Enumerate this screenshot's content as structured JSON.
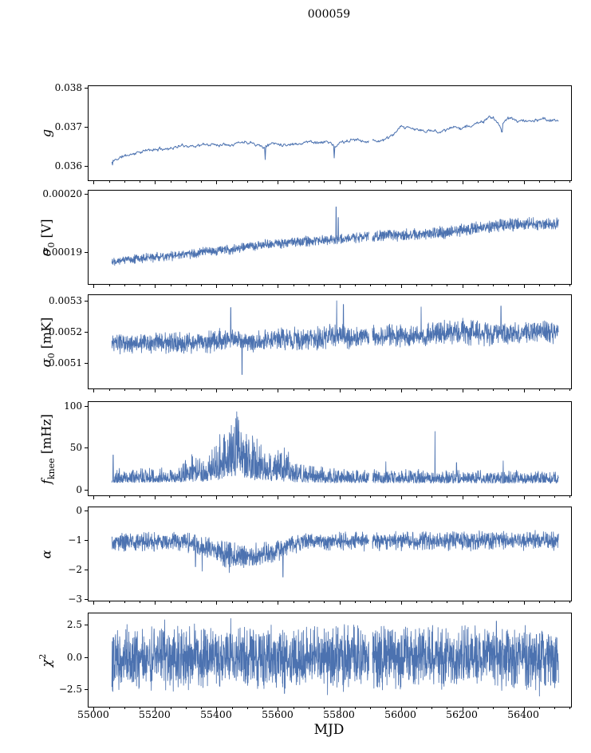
{
  "figure": {
    "title": "000059",
    "xlabel": "MJD",
    "background": "#ffffff",
    "line_color": "#4c72b0",
    "axis_color": "#000000",
    "xlim": [
      54982,
      56553
    ],
    "x_minor_step": 50,
    "xticks": [
      {
        "v": 55000,
        "label": "55000"
      },
      {
        "v": 55200,
        "label": "55200"
      },
      {
        "v": 55400,
        "label": "55400"
      },
      {
        "v": 55600,
        "label": "55600"
      },
      {
        "v": 55800,
        "label": "55800"
      },
      {
        "v": 56000,
        "label": "56000"
      },
      {
        "v": 56200,
        "label": "56200"
      },
      {
        "v": 56400,
        "label": "56400"
      }
    ]
  },
  "chart_data": [
    {
      "type": "line",
      "ylabel": {
        "main": "g",
        "sub": "",
        "sup": "",
        "unit": ""
      },
      "ylim": [
        0.03565,
        0.03805
      ],
      "yticks": [
        {
          "v": 0.038,
          "label": "0.038"
        },
        {
          "v": 0.037,
          "label": "0.037"
        },
        {
          "v": 0.036,
          "label": "0.036"
        }
      ],
      "x_range": [
        55058,
        56512
      ],
      "n_points": 700,
      "seed": 11,
      "smooth": 0.88,
      "skew": false,
      "line_width": 1.0,
      "trend": [
        [
          55058,
          0.03612
        ],
        [
          55090,
          0.03625
        ],
        [
          55150,
          0.03638
        ],
        [
          55220,
          0.03645
        ],
        [
          55280,
          0.03652
        ],
        [
          55340,
          0.03655
        ],
        [
          55400,
          0.03656
        ],
        [
          55460,
          0.03662
        ],
        [
          55520,
          0.03664
        ],
        [
          55555,
          0.0365
        ],
        [
          55580,
          0.0366
        ],
        [
          55640,
          0.03658
        ],
        [
          55700,
          0.03664
        ],
        [
          55770,
          0.03662
        ],
        [
          55785,
          0.03645
        ],
        [
          55800,
          0.0366
        ],
        [
          55840,
          0.03667
        ],
        [
          55880,
          0.03668
        ],
        [
          55920,
          0.03666
        ],
        [
          55960,
          0.03672
        ],
        [
          56000,
          0.03698
        ],
        [
          56040,
          0.03694
        ],
        [
          56080,
          0.0369
        ],
        [
          56130,
          0.03692
        ],
        [
          56180,
          0.03698
        ],
        [
          56230,
          0.03705
        ],
        [
          56270,
          0.03718
        ],
        [
          56300,
          0.03724
        ],
        [
          56325,
          0.037
        ],
        [
          56345,
          0.03722
        ],
        [
          56380,
          0.03718
        ],
        [
          56420,
          0.03716
        ],
        [
          56460,
          0.03722
        ],
        [
          56512,
          0.03714
        ]
      ],
      "amp": [
        [
          55058,
          0.0001
        ],
        [
          56512,
          0.0001
        ]
      ],
      "spikes": [
        [
          55060,
          0.03604
        ],
        [
          55557,
          0.03618
        ],
        [
          55782,
          0.03622
        ],
        [
          55900,
          0.03658
        ],
        [
          56328,
          0.03688
        ]
      ],
      "gaps": [
        [
          55895,
          55906
        ]
      ]
    },
    {
      "type": "line",
      "ylabel": {
        "main": "σ",
        "sub": "0",
        "sup": "",
        "unit": " [V]"
      },
      "ylim": [
        0.0001846,
        0.0002006
      ],
      "yticks": [
        {
          "v": 0.0002,
          "label": "0.00020"
        },
        {
          "v": 0.00019,
          "label": "0.00019"
        }
      ],
      "x_range": [
        55058,
        56512
      ],
      "n_points": 1900,
      "seed": 22,
      "smooth": 0,
      "skew": false,
      "line_width": 0.85,
      "trend": [
        [
          55058,
          0.0001886
        ],
        [
          55150,
          0.000189
        ],
        [
          55250,
          0.0001894
        ],
        [
          55350,
          0.00019
        ],
        [
          55420,
          0.0001904
        ],
        [
          55500,
          0.000191
        ],
        [
          55580,
          0.0001915
        ],
        [
          55660,
          0.0001918
        ],
        [
          55740,
          0.000192
        ],
        [
          55820,
          0.0001924
        ],
        [
          55900,
          0.0001928
        ],
        [
          55980,
          0.000193
        ],
        [
          56060,
          0.0001931
        ],
        [
          56140,
          0.0001934
        ],
        [
          56220,
          0.000194
        ],
        [
          56300,
          0.0001946
        ],
        [
          56380,
          0.0001949
        ],
        [
          56450,
          0.0001948
        ],
        [
          56512,
          0.000195
        ]
      ],
      "amp": [
        [
          55058,
          9e-07
        ],
        [
          55800,
          1e-06
        ],
        [
          56200,
          1.3e-06
        ],
        [
          56512,
          1.2e-06
        ]
      ],
      "spikes": [
        [
          55788,
          0.0001978
        ],
        [
          55795,
          0.000196
        ]
      ],
      "gaps": [
        [
          55895,
          55906
        ]
      ]
    },
    {
      "type": "line",
      "ylabel": {
        "main": "σ",
        "sub": "0",
        "sup": "",
        "unit": " [mK]"
      },
      "ylim": [
        0.00502,
        0.00532
      ],
      "yticks": [
        {
          "v": 0.0053,
          "label": "0.0053"
        },
        {
          "v": 0.0052,
          "label": "0.0052"
        },
        {
          "v": 0.0051,
          "label": "0.0051"
        }
      ],
      "x_range": [
        55058,
        56512
      ],
      "n_points": 1900,
      "seed": 33,
      "smooth": 0,
      "skew": false,
      "line_width": 0.85,
      "trend": [
        [
          55058,
          0.005163
        ],
        [
          55200,
          0.005166
        ],
        [
          55300,
          0.005164
        ],
        [
          55380,
          0.005172
        ],
        [
          55450,
          0.005178
        ],
        [
          55520,
          0.005168
        ],
        [
          55600,
          0.005182
        ],
        [
          55680,
          0.005176
        ],
        [
          55760,
          0.005188
        ],
        [
          55840,
          0.005184
        ],
        [
          55920,
          0.005186
        ],
        [
          56000,
          0.00519
        ],
        [
          56080,
          0.005192
        ],
        [
          56160,
          0.005198
        ],
        [
          56240,
          0.0052
        ],
        [
          56320,
          0.005196
        ],
        [
          56400,
          0.0052
        ],
        [
          56512,
          0.005204
        ]
      ],
      "amp": [
        [
          55058,
          3.5e-05
        ],
        [
          55400,
          4e-05
        ],
        [
          55500,
          3.5e-05
        ],
        [
          55780,
          5e-05
        ],
        [
          55850,
          4e-05
        ],
        [
          56100,
          4.2e-05
        ],
        [
          56200,
          5e-05
        ],
        [
          56300,
          4.2e-05
        ],
        [
          56512,
          4e-05
        ]
      ],
      "spikes": [
        [
          55445,
          0.00528
        ],
        [
          55482,
          0.005065
        ],
        [
          55790,
          0.005302
        ],
        [
          55812,
          0.00529
        ],
        [
          56065,
          0.005282
        ],
        [
          56325,
          0.005285
        ]
      ],
      "gaps": [
        [
          55895,
          55906
        ]
      ]
    },
    {
      "type": "line",
      "ylabel": {
        "main": "f",
        "sub": "knee",
        "sup": "",
        "unit": " [mHz]"
      },
      "ylim": [
        -6,
        105
      ],
      "yticks": [
        {
          "v": 100,
          "label": "100"
        },
        {
          "v": 50,
          "label": "50"
        },
        {
          "v": 0,
          "label": "0"
        }
      ],
      "x_range": [
        55058,
        56512
      ],
      "n_points": 1900,
      "seed": 44,
      "smooth": 0,
      "skew": true,
      "line_width": 0.85,
      "trend": [
        [
          55058,
          9
        ],
        [
          55380,
          10
        ],
        [
          55420,
          14
        ],
        [
          55460,
          16
        ],
        [
          55520,
          12
        ],
        [
          55600,
          11
        ],
        [
          55700,
          9
        ],
        [
          56512,
          8
        ]
      ],
      "amp": [
        [
          55058,
          18
        ],
        [
          55280,
          18
        ],
        [
          55320,
          40
        ],
        [
          55360,
          28
        ],
        [
          55400,
          55
        ],
        [
          55430,
          80
        ],
        [
          55455,
          88
        ],
        [
          55480,
          75
        ],
        [
          55510,
          62
        ],
        [
          55540,
          48
        ],
        [
          55570,
          38
        ],
        [
          55600,
          42
        ],
        [
          55625,
          48
        ],
        [
          55655,
          30
        ],
        [
          55700,
          24
        ],
        [
          55760,
          20
        ],
        [
          55900,
          17
        ],
        [
          56512,
          16
        ]
      ],
      "spikes": [
        [
          55062,
          42
        ],
        [
          55950,
          34
        ],
        [
          56110,
          70
        ],
        [
          56180,
          33
        ],
        [
          56332,
          35
        ]
      ],
      "gaps": [
        [
          55895,
          55906
        ]
      ]
    },
    {
      "type": "line",
      "ylabel": {
        "main": "α",
        "sub": "",
        "sup": "",
        "unit": ""
      },
      "ylim": [
        -3.05,
        0.11
      ],
      "yticks": [
        {
          "v": 0,
          "label": "0"
        },
        {
          "v": -1,
          "label": "−1"
        },
        {
          "v": -2,
          "label": "−2"
        },
        {
          "v": -3,
          "label": "−3"
        }
      ],
      "x_range": [
        55058,
        56512
      ],
      "n_points": 1900,
      "seed": 55,
      "smooth": 0,
      "skew": false,
      "line_width": 0.85,
      "trend": [
        [
          55058,
          -1.05
        ],
        [
          55300,
          -1.05
        ],
        [
          55340,
          -1.2
        ],
        [
          55380,
          -1.3
        ],
        [
          55420,
          -1.45
        ],
        [
          55450,
          -1.5
        ],
        [
          55500,
          -1.55
        ],
        [
          55550,
          -1.5
        ],
        [
          55600,
          -1.35
        ],
        [
          55640,
          -1.15
        ],
        [
          55700,
          -1.05
        ],
        [
          56512,
          -1.0
        ]
      ],
      "amp": [
        [
          55058,
          0.35
        ],
        [
          55350,
          0.4
        ],
        [
          55420,
          0.48
        ],
        [
          55550,
          0.48
        ],
        [
          55640,
          0.38
        ],
        [
          55700,
          0.35
        ],
        [
          56512,
          0.37
        ]
      ],
      "spikes": [
        [
          55330,
          -1.9
        ],
        [
          55352,
          -2.05
        ],
        [
          55440,
          -2.1
        ],
        [
          55615,
          -2.25
        ]
      ],
      "gaps": [
        [
          55895,
          55906
        ]
      ]
    },
    {
      "type": "line",
      "ylabel": {
        "main": "χ",
        "sub": "",
        "sup": "2",
        "unit": ""
      },
      "ylim": [
        -3.83,
        3.4
      ],
      "yticks": [
        {
          "v": 2.5,
          "label": "2.5"
        },
        {
          "v": 0,
          "label": "0.0"
        },
        {
          "v": -2.5,
          "label": "−2.5"
        }
      ],
      "x_range": [
        55058,
        56512
      ],
      "n_points": 2300,
      "seed": 66,
      "smooth": 0,
      "skew": false,
      "line_width": 0.85,
      "trend": [
        [
          55058,
          0
        ],
        [
          56512,
          0
        ]
      ],
      "amp": [
        [
          55058,
          2.7
        ],
        [
          56512,
          2.7
        ]
      ],
      "spikes": [
        [
          55230,
          2.9
        ],
        [
          55445,
          3.0
        ],
        [
          55620,
          -2.8
        ],
        [
          55760,
          -2.9
        ],
        [
          56310,
          2.8
        ],
        [
          56450,
          -3.0
        ]
      ],
      "gaps": [
        [
          55895,
          55906
        ]
      ]
    }
  ]
}
